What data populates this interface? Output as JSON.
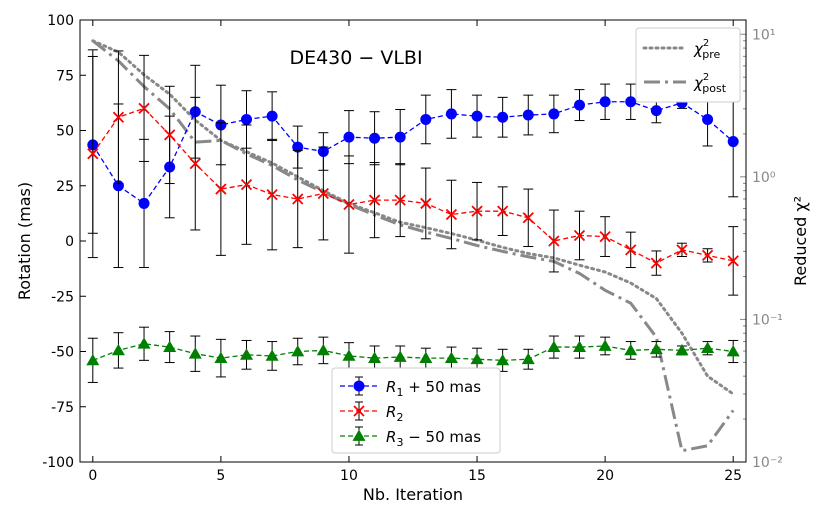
{
  "chart_data": {
    "type": "line",
    "title": "DE430 − VLBI",
    "xlabel": "Nb. Iteration",
    "ylabel": "Rotation (mas)",
    "y2label": "Reduced χ²",
    "xlim": [
      -0.5,
      25.5
    ],
    "ylim": [
      -100,
      100
    ],
    "y2lim_log10": [
      -2.0,
      1.1
    ],
    "x_ticks": [
      0,
      5,
      10,
      15,
      20,
      25
    ],
    "y_ticks": [
      -100,
      -75,
      -50,
      -25,
      0,
      25,
      50,
      75,
      100
    ],
    "y2_ticks": [
      {
        "exp": -2,
        "label": "10⁻²"
      },
      {
        "exp": -1,
        "label": "10⁻¹"
      },
      {
        "exp": 0,
        "label": "10⁰"
      },
      {
        "exp": 1,
        "label": "10¹"
      }
    ],
    "x": [
      0,
      1,
      2,
      3,
      4,
      5,
      6,
      7,
      8,
      9,
      10,
      11,
      12,
      13,
      14,
      15,
      16,
      17,
      18,
      19,
      20,
      21,
      22,
      23,
      24,
      25
    ],
    "series": [
      {
        "name": "R1 + 50 mas",
        "label_main": "R",
        "label_sub": "1",
        "label_rest": " + 50 mas",
        "color": "#0000ff",
        "marker": "circle",
        "values": [
          43.5,
          25,
          17,
          33.5,
          58.5,
          52.5,
          55,
          56.5,
          42.5,
          40.5,
          47,
          46.5,
          47,
          55,
          57.5,
          56.5,
          56,
          57,
          57.5,
          61.5,
          63,
          63,
          59,
          62.5,
          55,
          45
        ],
        "errors": [
          40,
          37,
          29,
          23,
          21,
          18,
          13,
          11,
          9.5,
          8.5,
          12,
          12,
          12.5,
          11,
          11,
          9.5,
          9,
          9,
          8.5,
          7,
          8,
          8,
          5.5,
          2.5,
          12,
          25
        ]
      },
      {
        "name": "R2",
        "label_main": "R",
        "label_sub": "2",
        "label_rest": "",
        "color": "#ff0000",
        "marker": "x",
        "values": [
          39.5,
          56,
          60,
          48,
          35,
          23.5,
          25.5,
          21,
          19,
          21.5,
          16.5,
          18.5,
          18.5,
          17,
          12,
          13.5,
          13.5,
          10.5,
          0,
          2.5,
          2,
          -4,
          -10,
          -4,
          -6.5,
          -9
        ],
        "errors": [
          47,
          30,
          24,
          22,
          30,
          30,
          27,
          25,
          22,
          21,
          22,
          17,
          16.5,
          16,
          15.5,
          13,
          11,
          13,
          14,
          11,
          9,
          8,
          5.5,
          3,
          3,
          15.5
        ]
      },
      {
        "name": "R3 − 50 mas",
        "label_main": "R",
        "label_sub": "3",
        "label_rest": " − 50 mas",
        "color": "#008000",
        "marker": "triangle",
        "values": [
          -54,
          -49.5,
          -46.5,
          -48,
          -51,
          -53,
          -51.5,
          -52,
          -50,
          -49.5,
          -52,
          -53,
          -52.5,
          -53,
          -53,
          -53.5,
          -54,
          -53.5,
          -48,
          -48,
          -47.5,
          -49.5,
          -49,
          -49.5,
          -48.5,
          -50
        ],
        "errors": [
          10,
          8,
          7.5,
          7,
          8,
          8.5,
          6.5,
          6.5,
          6,
          6,
          6,
          5.5,
          5,
          4.5,
          5,
          5,
          5,
          4.5,
          5,
          5,
          4,
          4,
          3.5,
          2,
          3,
          5
        ]
      }
    ],
    "chi2_series": [
      {
        "name": "chi2_pre",
        "label_main": "χ",
        "label_sup": "2",
        "label_sub": "pre",
        "color": "#888888",
        "style": "dotted",
        "values": [
          9.0,
          7.5,
          5.2,
          3.8,
          2.5,
          1.8,
          1.5,
          1.25,
          1.0,
          0.8,
          0.65,
          0.56,
          0.48,
          0.44,
          0.4,
          0.36,
          0.32,
          0.29,
          0.27,
          0.24,
          0.215,
          0.18,
          0.14,
          0.08,
          0.04,
          0.03
        ]
      },
      {
        "name": "chi2_post",
        "label_main": "χ",
        "label_sup": "2",
        "label_sub": "post",
        "color": "#888888",
        "style": "dashdot",
        "values": [
          9.0,
          6.5,
          4.3,
          3.0,
          1.75,
          1.8,
          1.45,
          1.2,
          0.95,
          0.78,
          0.64,
          0.54,
          0.46,
          0.41,
          0.37,
          0.33,
          0.3,
          0.275,
          0.255,
          0.21,
          0.16,
          0.13,
          0.075,
          0.012,
          0.013,
          0.023
        ]
      }
    ],
    "legend_locations": [
      "bottom-center",
      "top-right"
    ]
  }
}
